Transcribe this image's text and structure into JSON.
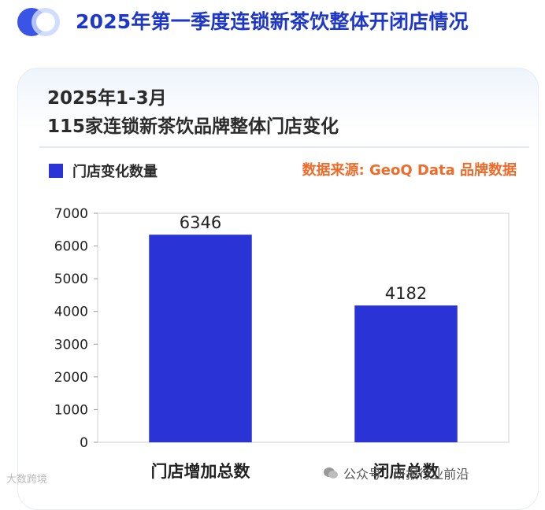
{
  "header": {
    "title": "2025年第一季度连锁新茶饮整体开闭店情况"
  },
  "chart_header": {
    "title_line1": "2025年1-3月",
    "title_line2": "115家连锁新茶饮品牌整体门店变化"
  },
  "legend": {
    "label": "门店变化数量"
  },
  "source": "数据来源: GeoQ Data 品牌数据",
  "watermark": "大数跨境",
  "footer": {
    "brand": "公众号 · 研报行业前沿"
  },
  "colors": {
    "bar": "#2a34d6",
    "title": "#1d37c9",
    "source": "#ee6b2a"
  },
  "chart_data": {
    "type": "bar",
    "categories": [
      "门店增加总数",
      "闭店总数"
    ],
    "values": [
      6346,
      4182
    ],
    "yticks": [
      0,
      1000,
      2000,
      3000,
      4000,
      5000,
      6000,
      7000
    ],
    "ylim": [
      0,
      7000
    ],
    "title": "2025年1-3月 115家连锁新茶饮品牌整体门店变化",
    "legend": [
      "门店变化数量"
    ],
    "grid": false
  }
}
